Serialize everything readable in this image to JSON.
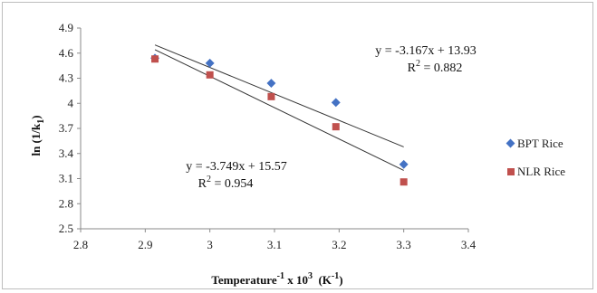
{
  "chart_data": {
    "type": "scatter",
    "xlim": [
      2.8,
      3.4
    ],
    "ylim": [
      2.5,
      4.9
    ],
    "x_ticks": [
      "2.8",
      "2.9",
      "3",
      "3.1",
      "3.2",
      "3.3",
      "3.4"
    ],
    "y_ticks": [
      "2.5",
      "2.8",
      "3.1",
      "3.4",
      "3.7",
      "4",
      "4.3",
      "4.6",
      "4.9"
    ],
    "x_tick_values": [
      2.8,
      2.9,
      3.0,
      3.1,
      3.2,
      3.3,
      3.4
    ],
    "y_tick_values": [
      2.5,
      2.8,
      3.1,
      3.4,
      3.7,
      4.0,
      4.3,
      4.6,
      4.9
    ],
    "xlabel": {
      "main": "Temperature",
      "sup1": "-1",
      "mid": " x 10",
      "sup2": "3",
      "unit_open": "  (K",
      "sup3": "-1",
      "unit_close": ")"
    },
    "ylabel": {
      "main": "ln (1/k",
      "sub": "1",
      "close": ")"
    },
    "grid": false,
    "legend_position": "right",
    "series": [
      {
        "name": "BPT Rice",
        "marker": "diamond",
        "color": "#4472C4",
        "points": [
          [
            2.915,
            4.54
          ],
          [
            3.0,
            4.48
          ],
          [
            3.095,
            4.24
          ],
          [
            3.195,
            4.01
          ],
          [
            3.3,
            3.27
          ]
        ],
        "trendline": {
          "slope": -3.167,
          "intercept": 13.93,
          "x_range": [
            2.915,
            3.3
          ],
          "color": "#333333"
        },
        "equation": "y = -3.167x + 13.93",
        "r2": {
          "prefix": "R",
          "sup": "2",
          "rest": " = 0.882"
        }
      },
      {
        "name": "NLR Rice",
        "marker": "square",
        "color": "#C0504D",
        "points": [
          [
            2.915,
            4.53
          ],
          [
            3.0,
            4.34
          ],
          [
            3.095,
            4.08
          ],
          [
            3.195,
            3.72
          ],
          [
            3.3,
            3.06
          ]
        ],
        "trendline": {
          "slope": -3.749,
          "intercept": 15.57,
          "x_range": [
            2.915,
            3.3
          ],
          "color": "#333333"
        },
        "equation": "y = -3.749x + 15.57",
        "r2": {
          "prefix": "R",
          "sup": "2",
          "rest": " = 0.954"
        }
      }
    ]
  }
}
